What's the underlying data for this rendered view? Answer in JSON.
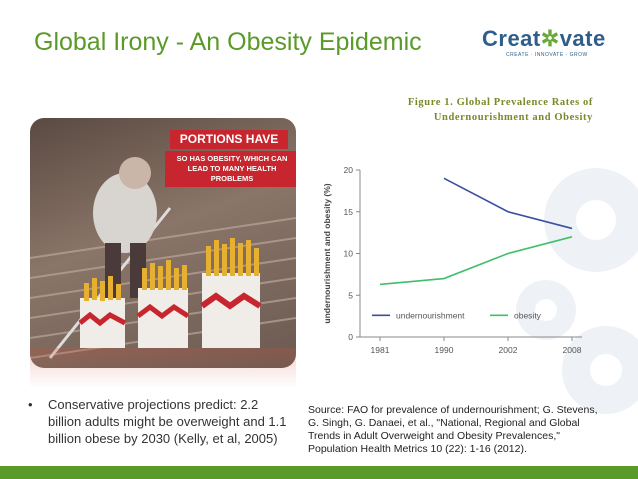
{
  "slide": {
    "title": "Global Irony - An Obesity Epidemic",
    "logo_text_a": "Creat",
    "logo_text_b": "vate",
    "logo_tagline": "CREATE · INNOVATE · GROW",
    "figure_caption": "Figure 1. Global Prevalence Rates of Undernourishment and Obesity",
    "photo_banner_title": "PORTIONS HAVE GROWN",
    "photo_banner_sub": "SO HAS OBESITY, WHICH CAN LEAD TO MANY HEALTH PROBLEMS",
    "bullet_text": "Conservative projections predict: 2.2 billion adults might be overweight and 1.1 billion obese by 2030 (Kelly, et al, 2005)",
    "source_text": "Source: FAO for prevalence of undernourishment; G. Stevens, G. Singh, G. Danaei, et al., \"National, Regional and Global Trends in Adult Overweight and Obesity Prevalences,\" Population Health Metrics 10 (22): 1-16 (2012)."
  },
  "colors": {
    "accent_green": "#5a9a28",
    "undernourishment": "#3a4fa0",
    "obesity": "#3fbf6a"
  },
  "chart_data": {
    "type": "line",
    "title": "",
    "xlabel": "",
    "ylabel": "undernourishment and obesity (%)",
    "categories": [
      "1981",
      "1990",
      "2002",
      "2008"
    ],
    "ylim": [
      0,
      20
    ],
    "yticks": [
      0,
      5,
      10,
      15,
      20
    ],
    "grid": false,
    "legend_position": "inside-bottom",
    "series": [
      {
        "name": "undernourishment",
        "values": [
          null,
          19,
          15,
          13
        ],
        "color": "#3a4fa0"
      },
      {
        "name": "obesity",
        "values": [
          6.3,
          7,
          10,
          12
        ],
        "color": "#3fbf6a"
      }
    ]
  }
}
